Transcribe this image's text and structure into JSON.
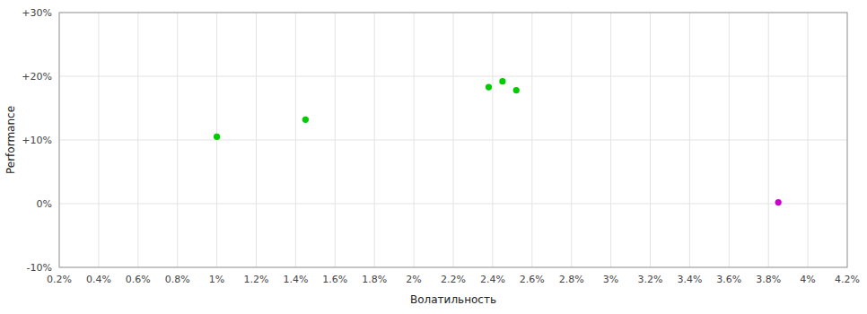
{
  "chart_data": {
    "type": "scatter",
    "xlabel": "Волатильность",
    "ylabel": "Performance",
    "xlim": [
      0.002,
      0.042
    ],
    "ylim": [
      -0.1,
      0.3
    ],
    "xticks": [
      {
        "value": 0.002,
        "label": "0.2%"
      },
      {
        "value": 0.004,
        "label": "0.4%"
      },
      {
        "value": 0.006,
        "label": "0.6%"
      },
      {
        "value": 0.008,
        "label": "0.8%"
      },
      {
        "value": 0.01,
        "label": "1%"
      },
      {
        "value": 0.012,
        "label": "1.2%"
      },
      {
        "value": 0.014,
        "label": "1.4%"
      },
      {
        "value": 0.016,
        "label": "1.6%"
      },
      {
        "value": 0.018,
        "label": "1.8%"
      },
      {
        "value": 0.02,
        "label": "2%"
      },
      {
        "value": 0.022,
        "label": "2.2%"
      },
      {
        "value": 0.024,
        "label": "2.4%"
      },
      {
        "value": 0.026,
        "label": "2.6%"
      },
      {
        "value": 0.028,
        "label": "2.8%"
      },
      {
        "value": 0.03,
        "label": "3%"
      },
      {
        "value": 0.032,
        "label": "3.2%"
      },
      {
        "value": 0.034,
        "label": "3.4%"
      },
      {
        "value": 0.036,
        "label": "3.6%"
      },
      {
        "value": 0.038,
        "label": "3.8%"
      },
      {
        "value": 0.04,
        "label": "4%"
      },
      {
        "value": 0.042,
        "label": "4.2%"
      }
    ],
    "yticks": [
      {
        "value": -0.1,
        "label": "-10%"
      },
      {
        "value": 0.0,
        "label": "0%"
      },
      {
        "value": 0.1,
        "label": "+10%"
      },
      {
        "value": 0.2,
        "label": "+20%"
      },
      {
        "value": 0.3,
        "label": "+30%"
      }
    ],
    "grid": true,
    "series": [
      {
        "color": "#00cc00",
        "x": [
          0.01,
          0.0145,
          0.0245,
          0.0238,
          0.0252
        ],
        "values": [
          0.105,
          0.132,
          0.192,
          0.183,
          0.178
        ]
      },
      {
        "color": "#cc00cc",
        "x": [
          0.0385
        ],
        "values": [
          0.002
        ]
      }
    ]
  }
}
